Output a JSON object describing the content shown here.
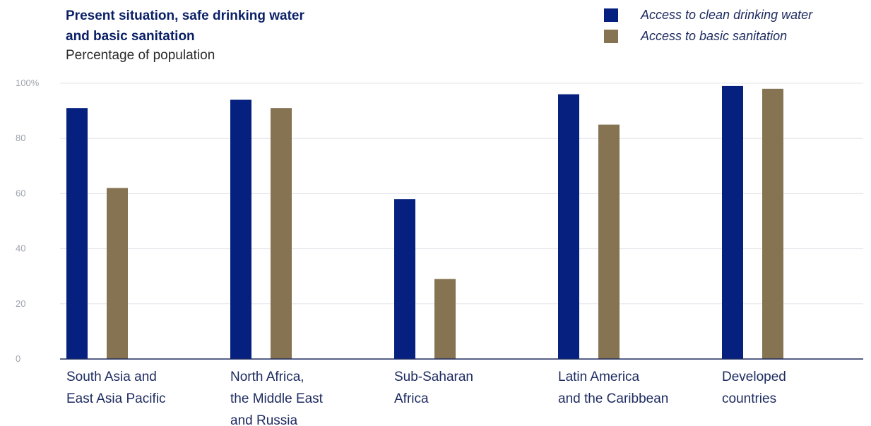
{
  "chart_data": {
    "type": "bar",
    "title": "Present situation, safe drinking water and basic sanitation",
    "subtitle": "Percentage of population",
    "categories": [
      [
        "South Asia and",
        "East Asia Pacific"
      ],
      [
        "North Africa,",
        "the Middle East",
        "and Russia"
      ],
      [
        "Sub-Saharan",
        "Africa"
      ],
      [
        "Latin America",
        "and the Caribbean"
      ],
      [
        "Developed",
        "countries"
      ]
    ],
    "series": [
      {
        "name": "Access to clean drinking water",
        "color": "#05207f",
        "values": [
          91,
          94,
          58,
          96,
          99
        ]
      },
      {
        "name": "Access to basic sanitation",
        "color": "#857352",
        "values": [
          62,
          91,
          29,
          85,
          98
        ]
      }
    ],
    "yticks": [
      "0",
      "20",
      "40",
      "60",
      "80",
      "100%"
    ],
    "ylim": [
      0,
      100
    ],
    "grid": true,
    "legend_position": "top-right"
  }
}
